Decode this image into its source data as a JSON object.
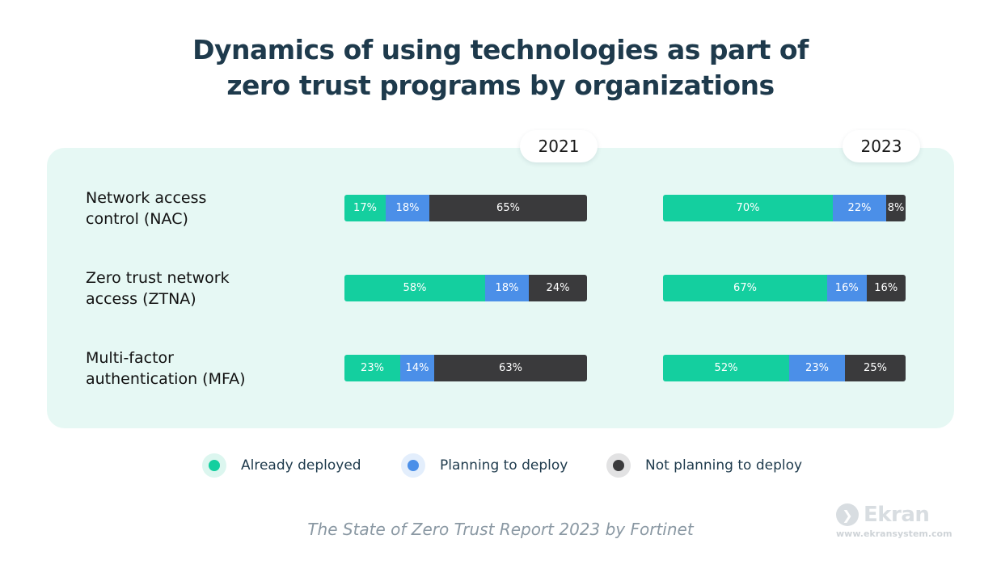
{
  "title": {
    "line1": "Dynamics of using technologies as part of",
    "line2": "zero trust programs by organizations"
  },
  "colors": {
    "already": "#14cf9f",
    "planning": "#4b8fe8",
    "not": "#3a3a3c",
    "panel": "#e6f8f4",
    "title": "#1e3a4c"
  },
  "chart_data": {
    "type": "bar",
    "orientation": "horizontal",
    "stacked": true,
    "normalized": true,
    "panels": [
      "2021",
      "2023"
    ],
    "categories": [
      [
        "Network access",
        "control (NAC)"
      ],
      [
        "Zero trust network",
        "access (ZTNA)"
      ],
      [
        "Multi-factor",
        "authentication (MFA)"
      ]
    ],
    "series": [
      {
        "name": "Already deployed",
        "color": "#14cf9f",
        "values_2021": [
          17,
          58,
          23
        ],
        "values_2023": [
          70,
          67,
          52
        ]
      },
      {
        "name": "Planning to deploy",
        "color": "#4b8fe8",
        "values_2021": [
          18,
          18,
          14
        ],
        "values_2023": [
          22,
          16,
          23
        ]
      },
      {
        "name": "Not planning to deploy",
        "color": "#3a3a3c",
        "values_2021": [
          65,
          24,
          63
        ],
        "values_2023": [
          8,
          16,
          25
        ]
      }
    ],
    "unit": "%",
    "legend": "bottom"
  },
  "source": "The State of Zero Trust Report 2023 by Fortinet",
  "brand": {
    "name": "Ekran",
    "url": "www.ekransystem.com",
    "icon": "ekran-logo-icon"
  }
}
